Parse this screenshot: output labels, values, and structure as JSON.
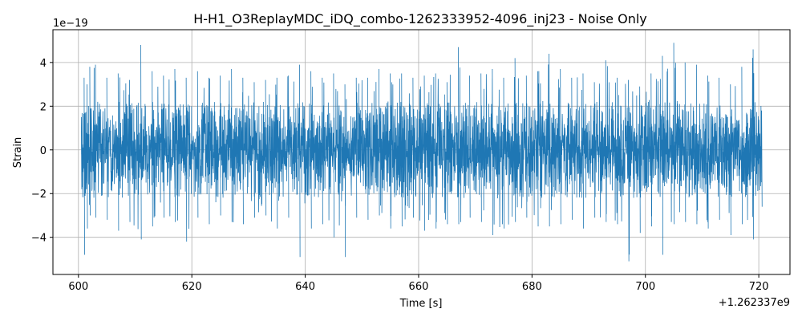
{
  "chart_data": {
    "type": "line",
    "title": "H-H1_O3ReplayMDC_iDQ_combo-1262333952-4096_inj23 - Noise Only",
    "xlabel": "Time [s]",
    "ylabel": "Strain",
    "x_offset_label": "+1.262337e9",
    "y_scale_label": "1e−19",
    "xlim": [
      595.5,
      725.5
    ],
    "ylim": [
      -5.7,
      5.5
    ],
    "x_ticks": [
      600,
      620,
      640,
      660,
      680,
      700,
      720
    ],
    "x_tick_labels": [
      "600",
      "620",
      "640",
      "660",
      "680",
      "700",
      "720"
    ],
    "y_ticks": [
      -4,
      -2,
      0,
      2,
      4
    ],
    "y_tick_labels": [
      "−4",
      "−2",
      "0",
      "2",
      "4"
    ],
    "grid": true,
    "series": [
      {
        "color": "#1f77b4",
        "x_start": 600.5,
        "x_end": 720.5,
        "envelope_x": [
          600.5,
          601.0,
          601.5,
          602.0,
          603.0,
          605.0,
          607.0,
          609.0,
          611.0,
          613.0,
          615.0,
          617.0,
          619.0,
          621.0,
          623.0,
          625.0,
          627.0,
          629.0,
          631.0,
          633.0,
          635.0,
          637.0,
          639.0,
          641.0,
          643.0,
          645.0,
          647.0,
          649.0,
          651.0,
          653.0,
          655.0,
          657.0,
          659.0,
          661.0,
          663.0,
          665.0,
          667.0,
          669.0,
          671.0,
          673.0,
          675.0,
          677.0,
          679.0,
          681.0,
          683.0,
          685.0,
          687.0,
          689.0,
          691.0,
          693.0,
          695.0,
          697.0,
          699.0,
          701.0,
          703.0,
          705.0,
          707.0,
          709.0,
          711.0,
          713.0,
          715.0,
          717.0,
          719.0,
          720.5
        ],
        "envelope_max": [
          1.5,
          3.3,
          3.0,
          3.8,
          3.9,
          3.3,
          3.5,
          3.2,
          4.8,
          3.6,
          3.4,
          3.7,
          3.3,
          3.6,
          3.3,
          3.4,
          3.7,
          3.3,
          3.1,
          3.2,
          3.3,
          3.4,
          3.9,
          3.6,
          3.3,
          3.5,
          3.0,
          3.3,
          3.3,
          3.7,
          3.5,
          3.5,
          3.3,
          3.4,
          3.5,
          3.1,
          4.7,
          3.4,
          3.5,
          3.7,
          3.3,
          4.2,
          3.4,
          3.6,
          4.4,
          3.7,
          3.3,
          3.5,
          3.1,
          4.1,
          3.3,
          3.2,
          2.9,
          3.5,
          4.3,
          4.9,
          4.0,
          3.9,
          3.4,
          3.3,
          3.0,
          3.8,
          4.6,
          1.8
        ],
        "envelope_min": [
          -1.8,
          -4.8,
          -3.6,
          -3.0,
          -3.1,
          -3.2,
          -3.7,
          -3.3,
          -4.1,
          -3.5,
          -3.1,
          -3.3,
          -4.2,
          -3.1,
          -3.4,
          -3.0,
          -3.3,
          -3.4,
          -3.1,
          -3.0,
          -3.6,
          -3.1,
          -4.9,
          -3.6,
          -3.4,
          -4.0,
          -4.9,
          -3.1,
          -3.2,
          -3.0,
          -3.6,
          -3.5,
          -3.1,
          -3.7,
          -3.6,
          -3.4,
          -3.4,
          -3.1,
          -3.3,
          -3.9,
          -3.6,
          -3.3,
          -3.1,
          -3.5,
          -3.5,
          -3.4,
          -3.2,
          -3.6,
          -3.1,
          -3.3,
          -3.4,
          -5.1,
          -3.8,
          -3.5,
          -4.8,
          -3.4,
          -3.3,
          -3.4,
          -3.6,
          -3.2,
          -3.9,
          -3.4,
          -4.1,
          -2.6
        ],
        "typical_abs_max": 2.2
      }
    ]
  }
}
